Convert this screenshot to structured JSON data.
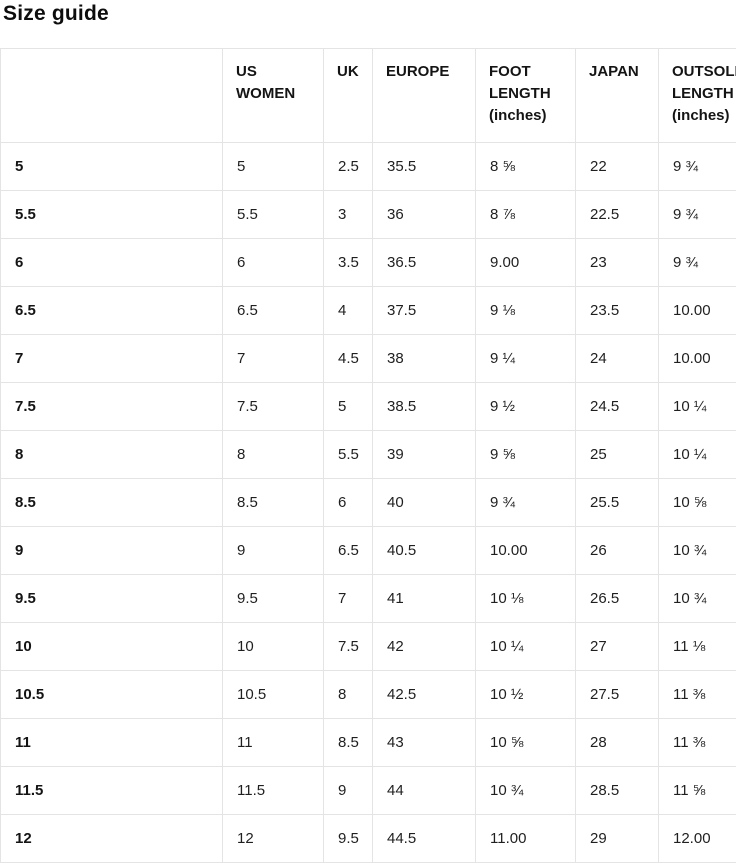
{
  "title": "Size guide",
  "table": {
    "headers": [
      "",
      "US WOMEN",
      "UK",
      "EUROPE",
      "FOOT LENGTH (inches)",
      "JAPAN",
      "OUTSOLE LENGTH (inches)"
    ],
    "rows": [
      [
        "5",
        "5",
        "2.5",
        "35.5",
        "8 ⅝",
        "22",
        "9 ¾"
      ],
      [
        "5.5",
        "5.5",
        "3",
        "36",
        "8 ⅞",
        "22.5",
        "9 ¾"
      ],
      [
        "6",
        "6",
        "3.5",
        "36.5",
        "9.00",
        "23",
        "9 ¾"
      ],
      [
        "6.5",
        "6.5",
        "4",
        "37.5",
        "9 ⅛",
        "23.5",
        "10.00"
      ],
      [
        "7",
        "7",
        "4.5",
        "38",
        "9 ¼",
        "24",
        "10.00"
      ],
      [
        "7.5",
        "7.5",
        "5",
        "38.5",
        "9 ½",
        "24.5",
        "10 ¼"
      ],
      [
        "8",
        "8",
        "5.5",
        "39",
        "9 ⅝",
        "25",
        "10 ¼"
      ],
      [
        "8.5",
        "8.5",
        "6",
        "40",
        "9 ¾",
        "25.5",
        "10 ⅝"
      ],
      [
        "9",
        "9",
        "6.5",
        "40.5",
        "10.00",
        "26",
        "10 ¾"
      ],
      [
        "9.5",
        "9.5",
        "7",
        "41",
        "10 ⅛",
        "26.5",
        "10 ¾"
      ],
      [
        "10",
        "10",
        "7.5",
        "42",
        "10 ¼",
        "27",
        "11 ⅛"
      ],
      [
        "10.5",
        "10.5",
        "8",
        "42.5",
        "10 ½",
        "27.5",
        "11 ⅜"
      ],
      [
        "11",
        "11",
        "8.5",
        "43",
        "10 ⅝",
        "28",
        "11 ⅜"
      ],
      [
        "11.5",
        "11.5",
        "9",
        "44",
        "10 ¾",
        "28.5",
        "11 ⅝"
      ],
      [
        "12",
        "12",
        "9.5",
        "44.5",
        "11.00",
        "29",
        "12.00"
      ]
    ]
  },
  "colors": {
    "background": "#ffffff",
    "border": "#e4e4e4",
    "text": "#1f1f1f",
    "heading_text": "#0d0d0d"
  }
}
